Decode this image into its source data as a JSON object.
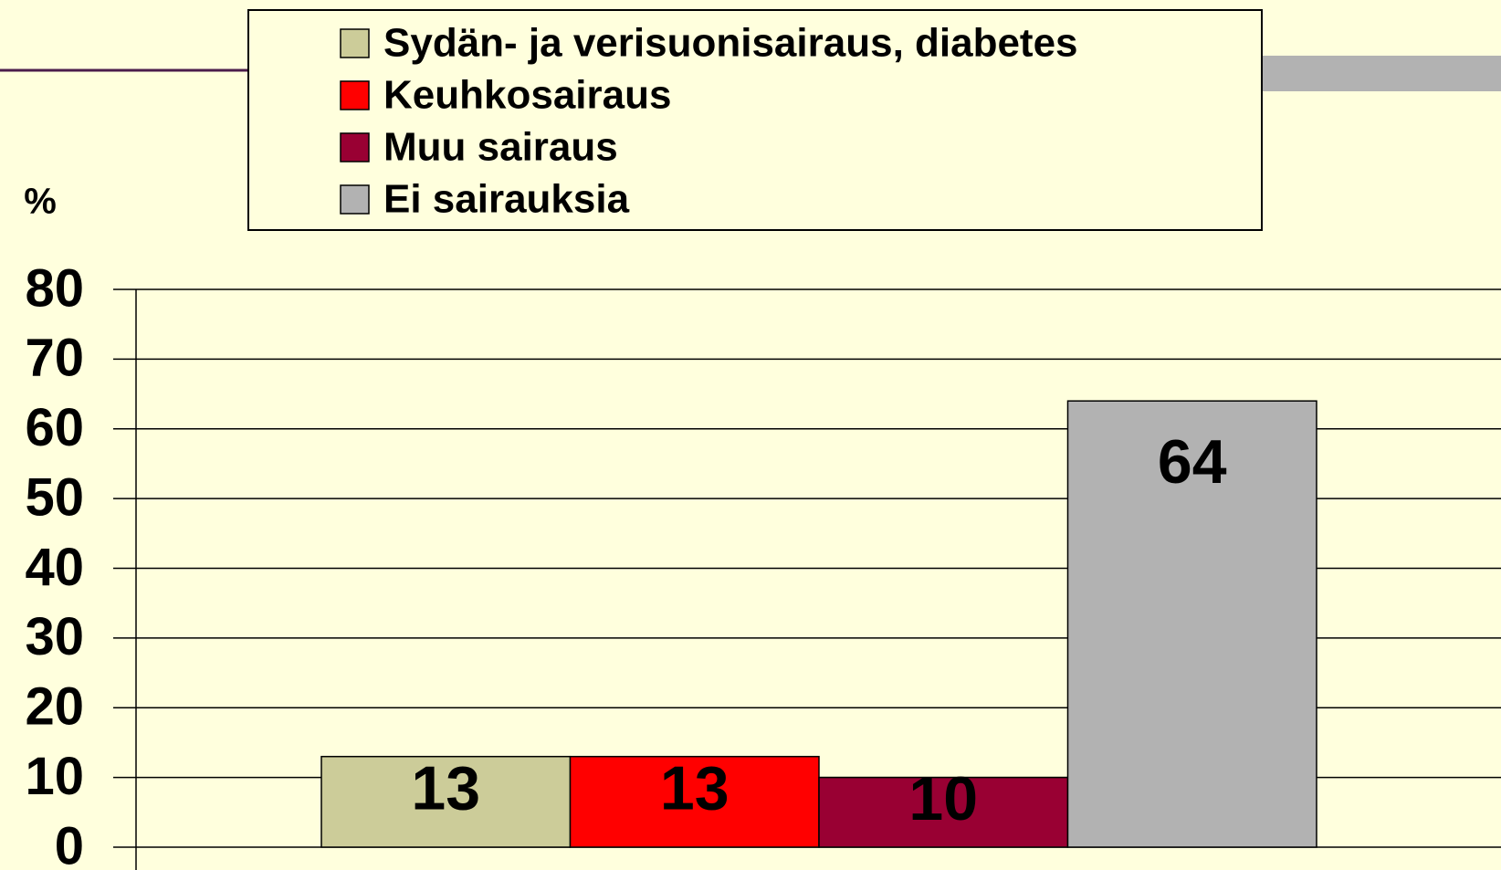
{
  "chart_data": {
    "type": "bar",
    "y_label": "%",
    "categories": [
      null
    ],
    "series": [
      {
        "name": "Sydän- ja verisuonisairaus, diabetes",
        "color": "#cccc99",
        "values": [
          13
        ]
      },
      {
        "name": "Keuhkosairaus",
        "color": "#ff0000",
        "values": [
          13
        ]
      },
      {
        "name": "Muu sairaus",
        "color": "#990033",
        "values": [
          10
        ]
      },
      {
        "name": "Ei sairauksia",
        "color": "#b2b2b2",
        "values": [
          64
        ]
      }
    ],
    "ylim": [
      0,
      80
    ],
    "yticks": [
      0,
      10,
      20,
      30,
      40,
      50,
      60,
      70,
      80
    ],
    "grid": true,
    "legend": "top"
  }
}
